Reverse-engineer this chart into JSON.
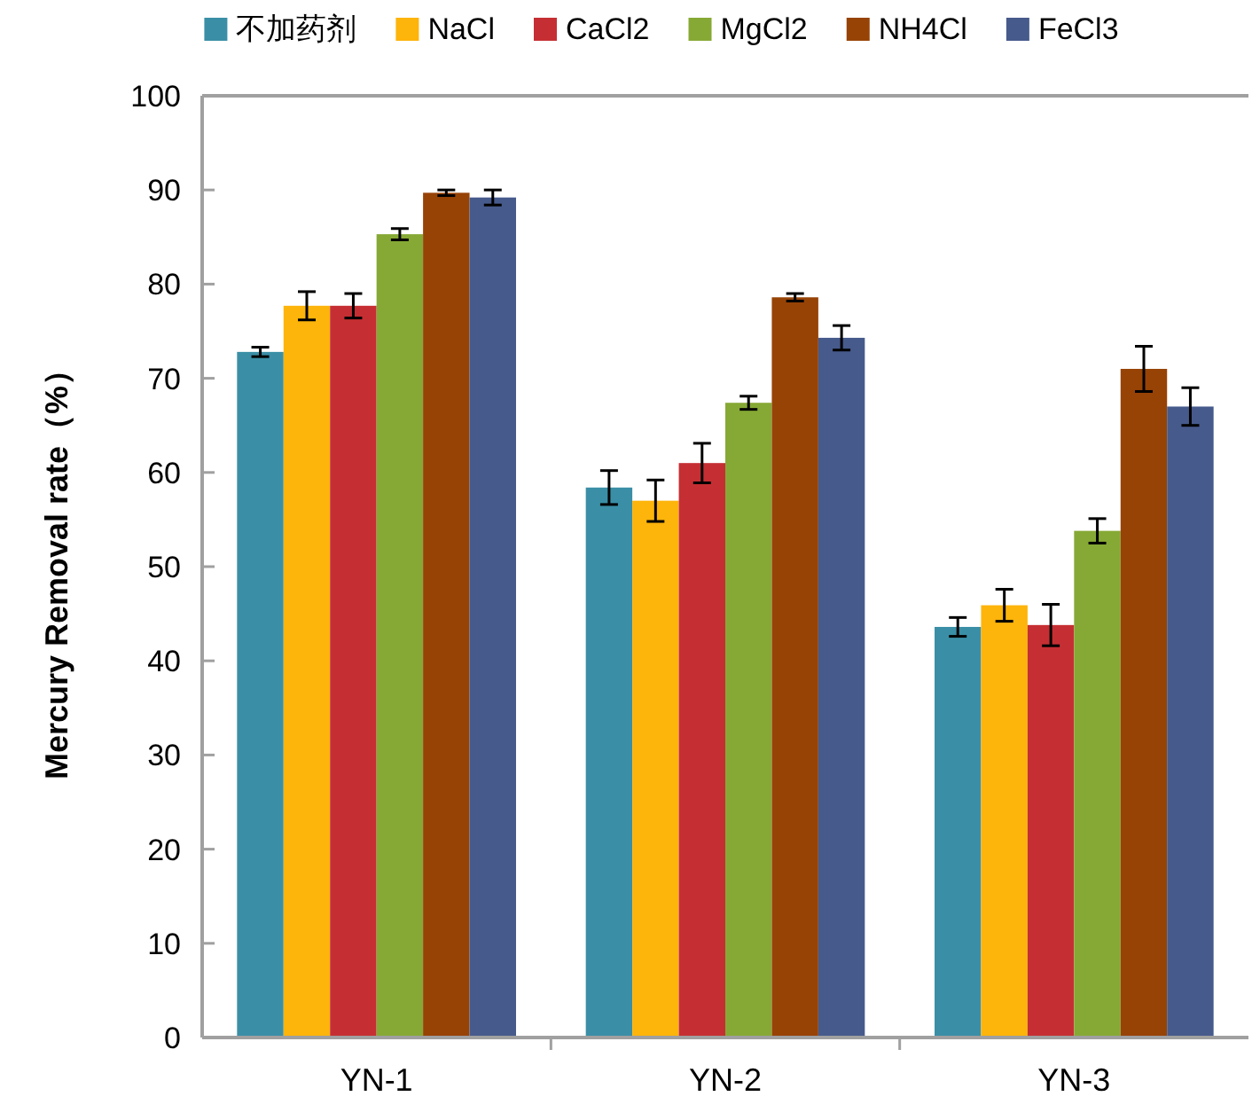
{
  "chart_data": {
    "type": "bar",
    "ylabel": "Mercury Removal rate（%）",
    "categories": [
      "YN-1",
      "YN-2",
      "YN-3"
    ],
    "series": [
      {
        "name": "不加药剂",
        "color": "#3a8fa6",
        "values": [
          72.8,
          58.4,
          43.6
        ],
        "errors": [
          0.5,
          1.8,
          1.0
        ]
      },
      {
        "name": "NaCl",
        "color": "#fdb40b",
        "values": [
          77.7,
          57.0,
          45.9
        ],
        "errors": [
          1.5,
          2.2,
          1.7
        ]
      },
      {
        "name": "CaCl2",
        "color": "#c52f33",
        "values": [
          77.7,
          61.0,
          43.8
        ],
        "errors": [
          1.3,
          2.1,
          2.2
        ]
      },
      {
        "name": "MgCl2",
        "color": "#86a935",
        "values": [
          85.3,
          67.4,
          53.8
        ],
        "errors": [
          0.6,
          0.7,
          1.3
        ]
      },
      {
        "name": "NH4Cl",
        "color": "#974306",
        "values": [
          89.7,
          78.6,
          71.0
        ],
        "errors": [
          0.3,
          0.4,
          2.4
        ]
      },
      {
        "name": "FeCl3",
        "color": "#475a8c",
        "values": [
          89.2,
          74.3,
          67.0
        ],
        "errors": [
          0.8,
          1.3,
          2.0
        ]
      }
    ],
    "ylim": [
      0,
      100
    ],
    "yticks": [
      0,
      10,
      20,
      30,
      40,
      50,
      60,
      70,
      80,
      90,
      100
    ],
    "legend": "top",
    "grid": false
  }
}
